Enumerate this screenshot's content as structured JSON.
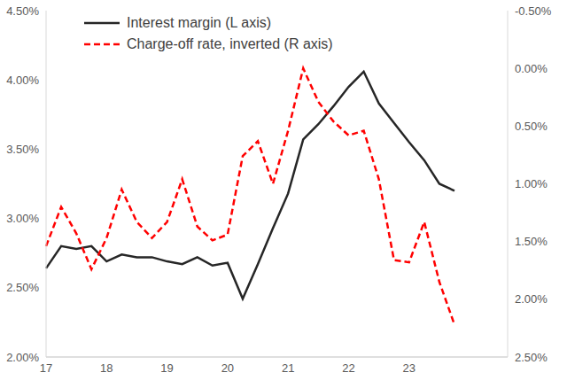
{
  "chart_data": {
    "type": "line",
    "categories": [
      "17",
      null,
      null,
      null,
      "18",
      null,
      null,
      null,
      "19",
      null,
      null,
      null,
      "20",
      null,
      null,
      null,
      "21",
      null,
      null,
      null,
      "22",
      null,
      null,
      null,
      "23",
      null,
      null,
      null
    ],
    "series": [
      {
        "name": "Interest margin (L axis)",
        "color": "#262626",
        "line_style": "solid",
        "values": [
          2.64,
          2.8,
          2.78,
          2.8,
          2.69,
          2.74,
          2.72,
          2.72,
          2.69,
          2.67,
          2.72,
          2.66,
          2.68,
          2.42,
          2.67,
          2.93,
          3.18,
          3.57,
          3.68,
          3.81,
          3.95,
          4.06,
          3.83,
          3.69,
          3.55,
          3.42,
          3.25,
          3.2
        ]
      },
      {
        "name": "Charge-off rate, inverted (R axis)",
        "color": "#ff0000",
        "line_style": "dashed",
        "axis": "y2",
        "values": [
          1.54,
          1.2,
          1.43,
          1.74,
          1.47,
          1.05,
          1.33,
          1.47,
          1.33,
          0.96,
          1.37,
          1.49,
          1.44,
          0.76,
          0.63,
          1.0,
          0.54,
          0.0,
          0.29,
          0.46,
          0.58,
          0.54,
          0.96,
          1.66,
          1.68,
          1.33,
          1.85,
          2.22
        ]
      }
    ],
    "ylim": [
      2,
      4.5
    ],
    "yticks": [
      {
        "value": 2,
        "label": "2.00%"
      },
      {
        "value": 2.5,
        "label": "2.50%"
      },
      {
        "value": 3,
        "label": "3.00%"
      },
      {
        "value": 3.5,
        "label": "3.50%"
      },
      {
        "value": 4,
        "label": "4.00%"
      },
      {
        "value": 4.5,
        "label": "4.50%"
      }
    ],
    "y2lim": [
      2.5,
      -0.5
    ],
    "y2ticks": [
      {
        "value": -0.5,
        "label": "-0.50%"
      },
      {
        "value": 0,
        "label": "0.00%"
      },
      {
        "value": 0.5,
        "label": "0.50%"
      },
      {
        "value": 1,
        "label": "1.00%"
      },
      {
        "value": 1.5,
        "label": "1.50%"
      },
      {
        "value": 2,
        "label": "2.00%"
      },
      {
        "value": 2.5,
        "label": "2.50%"
      }
    ],
    "legend": "upper left",
    "grid": false
  }
}
